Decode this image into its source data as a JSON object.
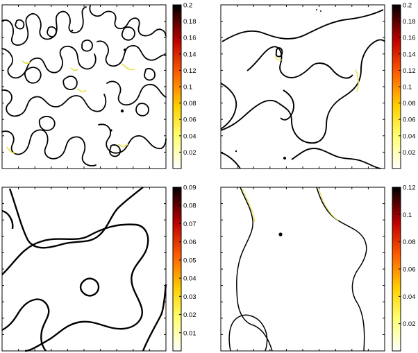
{
  "panels": [
    {
      "id": "top-left",
      "colorbar": {
        "min": 0,
        "max": 0.2,
        "ticks": [
          "0.2",
          "0.18",
          "0.16",
          "0.14",
          "0.12",
          "0.1",
          "0.08",
          "0.06",
          "0.04",
          "0.02"
        ]
      }
    },
    {
      "id": "top-right",
      "colorbar": {
        "min": 0,
        "max": 0.2,
        "ticks": [
          "0.2",
          "0.18",
          "0.16",
          "0.14",
          "0.12",
          "0.1",
          "0.08",
          "0.06",
          "0.04",
          "0.02"
        ]
      }
    },
    {
      "id": "bottom-left",
      "colorbar": {
        "min": 0,
        "max": 0.09,
        "ticks": [
          "0.09",
          "0.08",
          "0.07",
          "0.06",
          "0.05",
          "0.04",
          "0.03",
          "0.02",
          "0.01"
        ]
      }
    },
    {
      "id": "bottom-right",
      "colorbar": {
        "min": 0,
        "max": 0.12,
        "ticks": [
          "0.12",
          "0.1",
          "0.08",
          "0.06",
          "0.04",
          "0.02"
        ]
      }
    }
  ],
  "colormap": "hot (inverted): white → yellow → orange → red → black",
  "colors": {
    "line": "#000000",
    "accent": "#e8e04a"
  }
}
